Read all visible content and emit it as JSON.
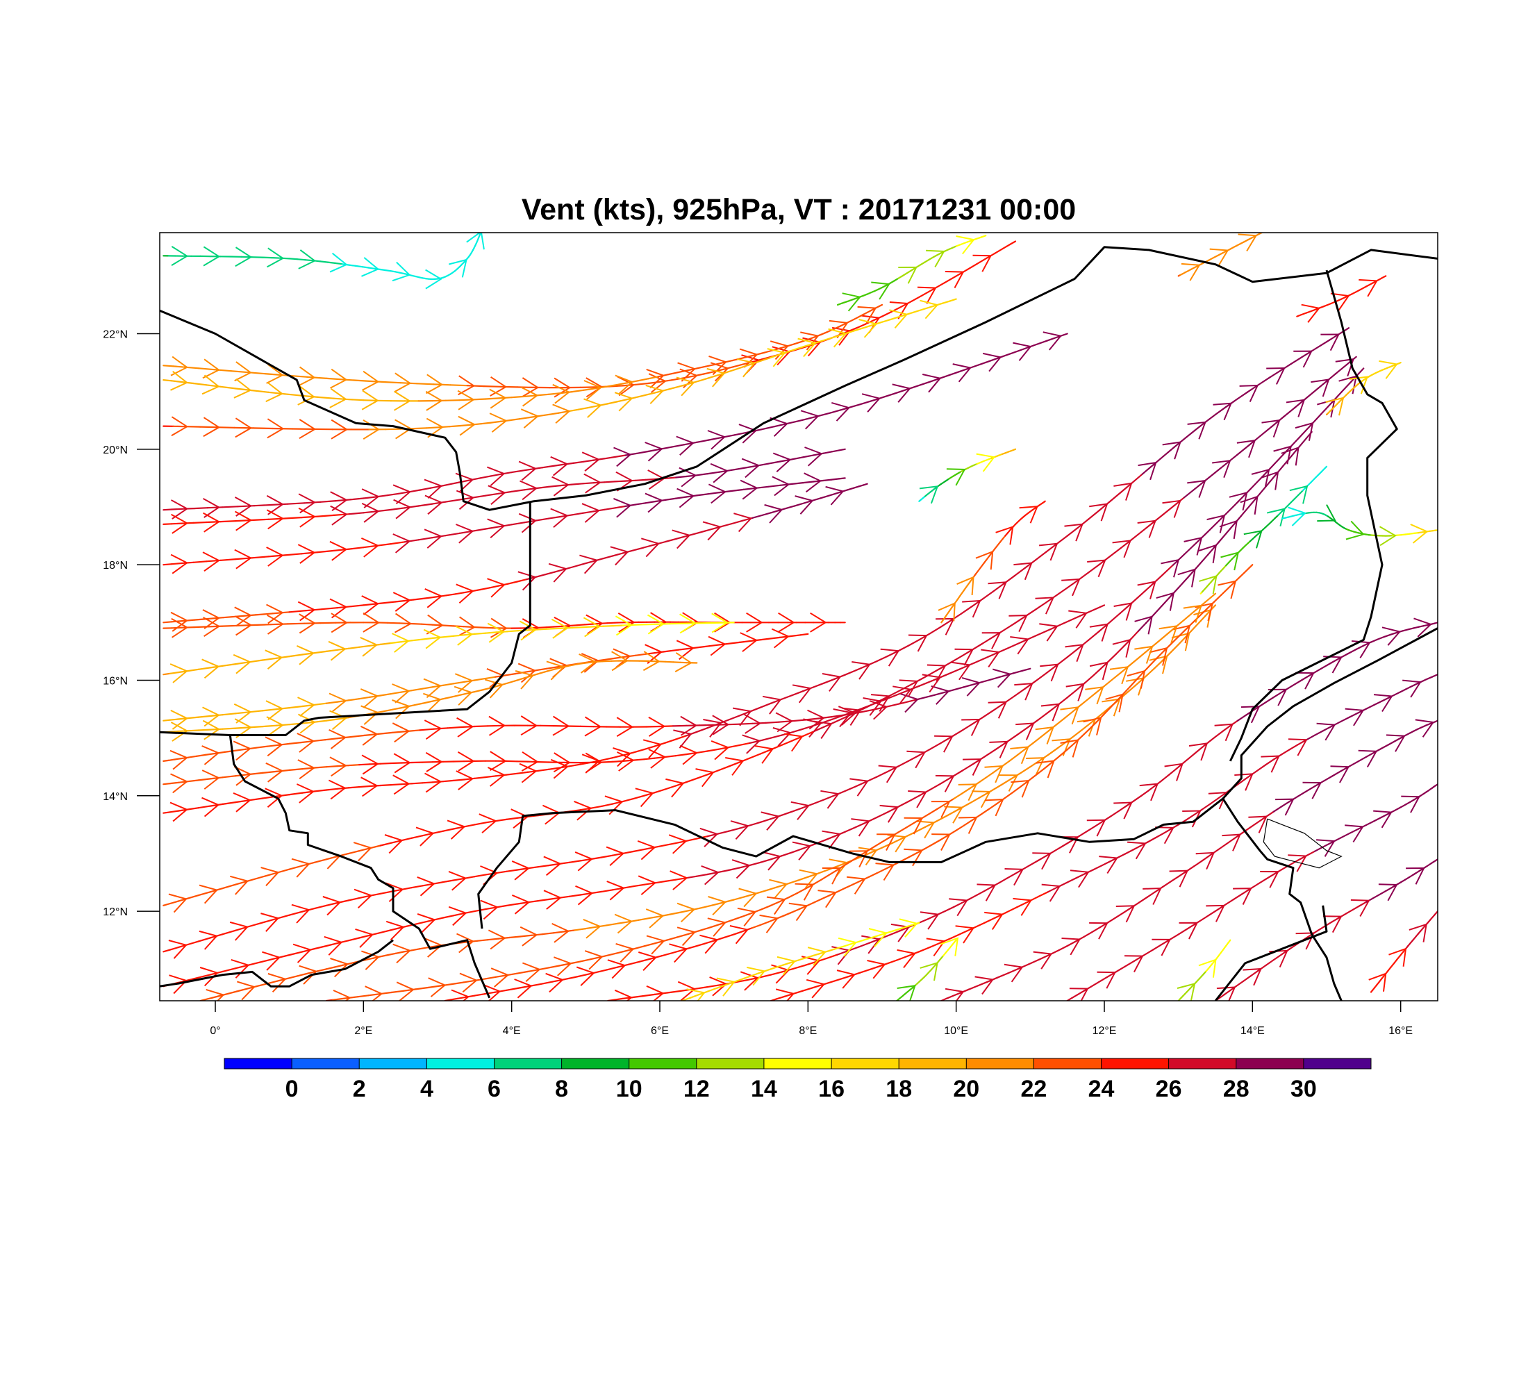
{
  "title": "Vent (kts), 925hPa, VT : 20171231  00:00",
  "map": {
    "lon_range": [
      -0.75,
      16.5
    ],
    "lat_range": [
      10.45,
      23.75
    ],
    "lon_ticks": [
      {
        "value": 0,
        "label": "0°"
      },
      {
        "value": 2,
        "label": "2°E"
      },
      {
        "value": 4,
        "label": "4°E"
      },
      {
        "value": 6,
        "label": "6°E"
      },
      {
        "value": 8,
        "label": "8°E"
      },
      {
        "value": 10,
        "label": "10°E"
      },
      {
        "value": 12,
        "label": "12°E"
      },
      {
        "value": 14,
        "label": "14°E"
      },
      {
        "value": 16,
        "label": "16°E"
      }
    ],
    "lat_ticks": [
      {
        "value": 12,
        "label": "12°N"
      },
      {
        "value": 14,
        "label": "14°N"
      },
      {
        "value": 16,
        "label": "16°N"
      },
      {
        "value": 18,
        "label": "18°N"
      },
      {
        "value": 20,
        "label": "20°N"
      },
      {
        "value": 22,
        "label": "22°N"
      }
    ],
    "borders": [
      [
        [
          -0.75,
          22.4
        ],
        [
          0.0,
          22.0
        ],
        [
          1.1,
          21.2
        ],
        [
          1.2,
          20.85
        ],
        [
          1.9,
          20.45
        ],
        [
          2.4,
          20.4
        ],
        [
          3.1,
          20.2
        ],
        [
          3.25,
          19.95
        ],
        [
          3.3,
          19.6
        ],
        [
          3.35,
          19.1
        ],
        [
          3.7,
          18.95
        ],
        [
          4.3,
          19.1
        ],
        [
          5.0,
          19.2
        ],
        [
          5.8,
          19.4
        ],
        [
          6.5,
          19.7
        ],
        [
          7.4,
          20.45
        ],
        [
          8.5,
          21.1
        ],
        [
          9.3,
          21.55
        ],
        [
          10.4,
          22.2
        ],
        [
          11.6,
          22.95
        ],
        [
          12.0,
          23.5
        ],
        [
          12.6,
          23.45
        ],
        [
          13.5,
          23.2
        ],
        [
          14.0,
          22.9
        ],
        [
          15.0,
          23.05
        ],
        [
          15.6,
          23.45
        ],
        [
          16.5,
          23.3
        ]
      ],
      [
        [
          4.25,
          19.1
        ],
        [
          4.25,
          16.95
        ],
        [
          4.1,
          16.8
        ],
        [
          4.0,
          16.3
        ],
        [
          3.7,
          15.8
        ],
        [
          3.4,
          15.5
        ],
        [
          1.4,
          15.35
        ],
        [
          1.2,
          15.3
        ],
        [
          0.95,
          15.05
        ],
        [
          0.2,
          15.05
        ],
        [
          -0.75,
          15.1
        ]
      ],
      [
        [
          0.2,
          15.05
        ],
        [
          0.25,
          14.55
        ],
        [
          0.4,
          14.25
        ],
        [
          0.85,
          13.95
        ],
        [
          0.95,
          13.7
        ],
        [
          1.0,
          13.4
        ],
        [
          1.25,
          13.35
        ],
        [
          1.25,
          13.15
        ],
        [
          1.7,
          12.95
        ],
        [
          2.1,
          12.75
        ],
        [
          2.2,
          12.55
        ],
        [
          2.4,
          12.4
        ],
        [
          2.4,
          12.0
        ],
        [
          2.75,
          11.7
        ],
        [
          2.9,
          11.35
        ],
        [
          3.4,
          11.5
        ],
        [
          3.5,
          11.1
        ],
        [
          3.6,
          10.8
        ],
        [
          3.7,
          10.5
        ]
      ],
      [
        [
          3.6,
          11.7
        ],
        [
          3.55,
          12.3
        ],
        [
          3.8,
          12.75
        ],
        [
          4.1,
          13.2
        ],
        [
          4.15,
          13.65
        ],
        [
          4.55,
          13.7
        ],
        [
          5.4,
          13.75
        ],
        [
          6.2,
          13.5
        ],
        [
          6.85,
          13.1
        ],
        [
          7.3,
          12.95
        ],
        [
          7.8,
          13.3
        ],
        [
          8.6,
          13.0
        ],
        [
          9.1,
          12.85
        ],
        [
          9.8,
          12.85
        ],
        [
          10.4,
          13.2
        ],
        [
          11.1,
          13.35
        ],
        [
          11.8,
          13.2
        ],
        [
          12.4,
          13.25
        ],
        [
          12.8,
          13.5
        ],
        [
          13.2,
          13.55
        ],
        [
          13.6,
          13.95
        ]
      ],
      [
        [
          13.6,
          13.95
        ],
        [
          13.85,
          14.3
        ],
        [
          13.85,
          14.7
        ],
        [
          14.2,
          15.2
        ],
        [
          14.55,
          15.55
        ],
        [
          15.1,
          15.95
        ],
        [
          15.7,
          16.35
        ],
        [
          16.5,
          16.9
        ]
      ],
      [
        [
          13.6,
          13.95
        ],
        [
          13.8,
          13.55
        ],
        [
          14.1,
          13.05
        ],
        [
          14.2,
          12.9
        ],
        [
          14.55,
          12.75
        ],
        [
          14.5,
          12.3
        ],
        [
          14.65,
          12.15
        ],
        [
          14.8,
          11.6
        ],
        [
          15.0,
          11.2
        ],
        [
          15.1,
          10.75
        ],
        [
          15.2,
          10.45
        ]
      ],
      [
        [
          13.5,
          10.45
        ],
        [
          13.9,
          11.1
        ],
        [
          14.3,
          11.3
        ],
        [
          14.6,
          11.45
        ],
        [
          15.0,
          11.65
        ],
        [
          14.95,
          12.1
        ]
      ],
      [
        [
          15.0,
          23.1
        ],
        [
          15.2,
          22.2
        ],
        [
          15.35,
          21.4
        ],
        [
          15.55,
          20.95
        ],
        [
          15.75,
          20.8
        ],
        [
          15.95,
          20.35
        ],
        [
          15.55,
          19.85
        ],
        [
          15.55,
          19.2
        ],
        [
          15.75,
          18.0
        ],
        [
          15.6,
          17.1
        ],
        [
          15.5,
          16.7
        ],
        [
          14.4,
          16.0
        ],
        [
          14.0,
          15.5
        ],
        [
          13.85,
          15.0
        ],
        [
          13.7,
          14.6
        ]
      ],
      [
        [
          -0.75,
          10.7
        ],
        [
          -0.5,
          10.75
        ],
        [
          0.1,
          10.9
        ],
        [
          0.5,
          10.95
        ],
        [
          0.75,
          10.7
        ],
        [
          1.0,
          10.7
        ],
        [
          1.3,
          10.9
        ],
        [
          1.75,
          11.0
        ],
        [
          2.2,
          11.3
        ],
        [
          2.4,
          11.5
        ]
      ]
    ],
    "lake_outline": [
      [
        14.2,
        13.6
      ],
      [
        14.4,
        13.5
      ],
      [
        14.7,
        13.35
      ],
      [
        15.0,
        13.05
      ],
      [
        15.2,
        12.95
      ],
      [
        14.9,
        12.75
      ],
      [
        14.6,
        12.85
      ],
      [
        14.3,
        12.95
      ],
      [
        14.15,
        13.2
      ],
      [
        14.2,
        13.6
      ]
    ]
  },
  "colorbar": {
    "colors": [
      "#0000ff",
      "#0a5fff",
      "#00b5ff",
      "#00f0e0",
      "#00d27a",
      "#00b42a",
      "#44c800",
      "#a5dc00",
      "#ffff00",
      "#ffd700",
      "#ffb400",
      "#ff8c00",
      "#ff5000",
      "#ff1400",
      "#d20a28",
      "#8c0050",
      "#50008c"
    ],
    "labels": [
      "0",
      "2",
      "4",
      "6",
      "8",
      "10",
      "12",
      "14",
      "16",
      "18",
      "20",
      "22",
      "24",
      "26",
      "28",
      "30"
    ]
  }
}
